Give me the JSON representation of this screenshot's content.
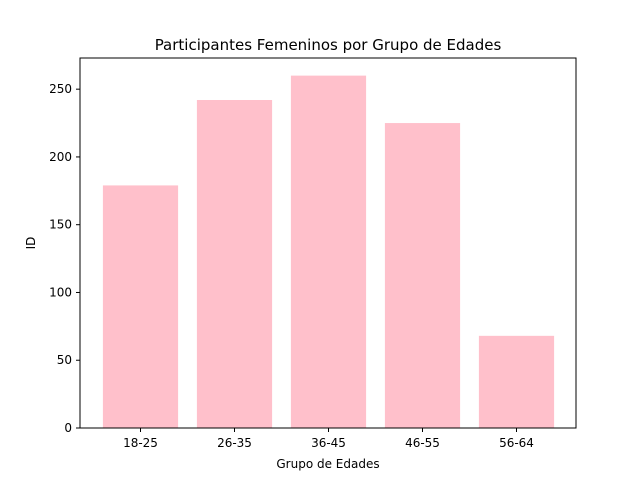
{
  "chart_data": {
    "type": "bar",
    "title": "Participantes Femeninos por Grupo de Edades",
    "xlabel": "Grupo de Edades",
    "ylabel": "ID",
    "categories": [
      "18-25",
      "26-35",
      "36-45",
      "46-55",
      "56-64"
    ],
    "values": [
      179,
      242,
      260,
      225,
      68
    ],
    "ylim": [
      0,
      273
    ],
    "yticks": [
      0,
      50,
      100,
      150,
      200,
      250
    ],
    "grid": false,
    "bar_color": "#FFC0CB"
  }
}
